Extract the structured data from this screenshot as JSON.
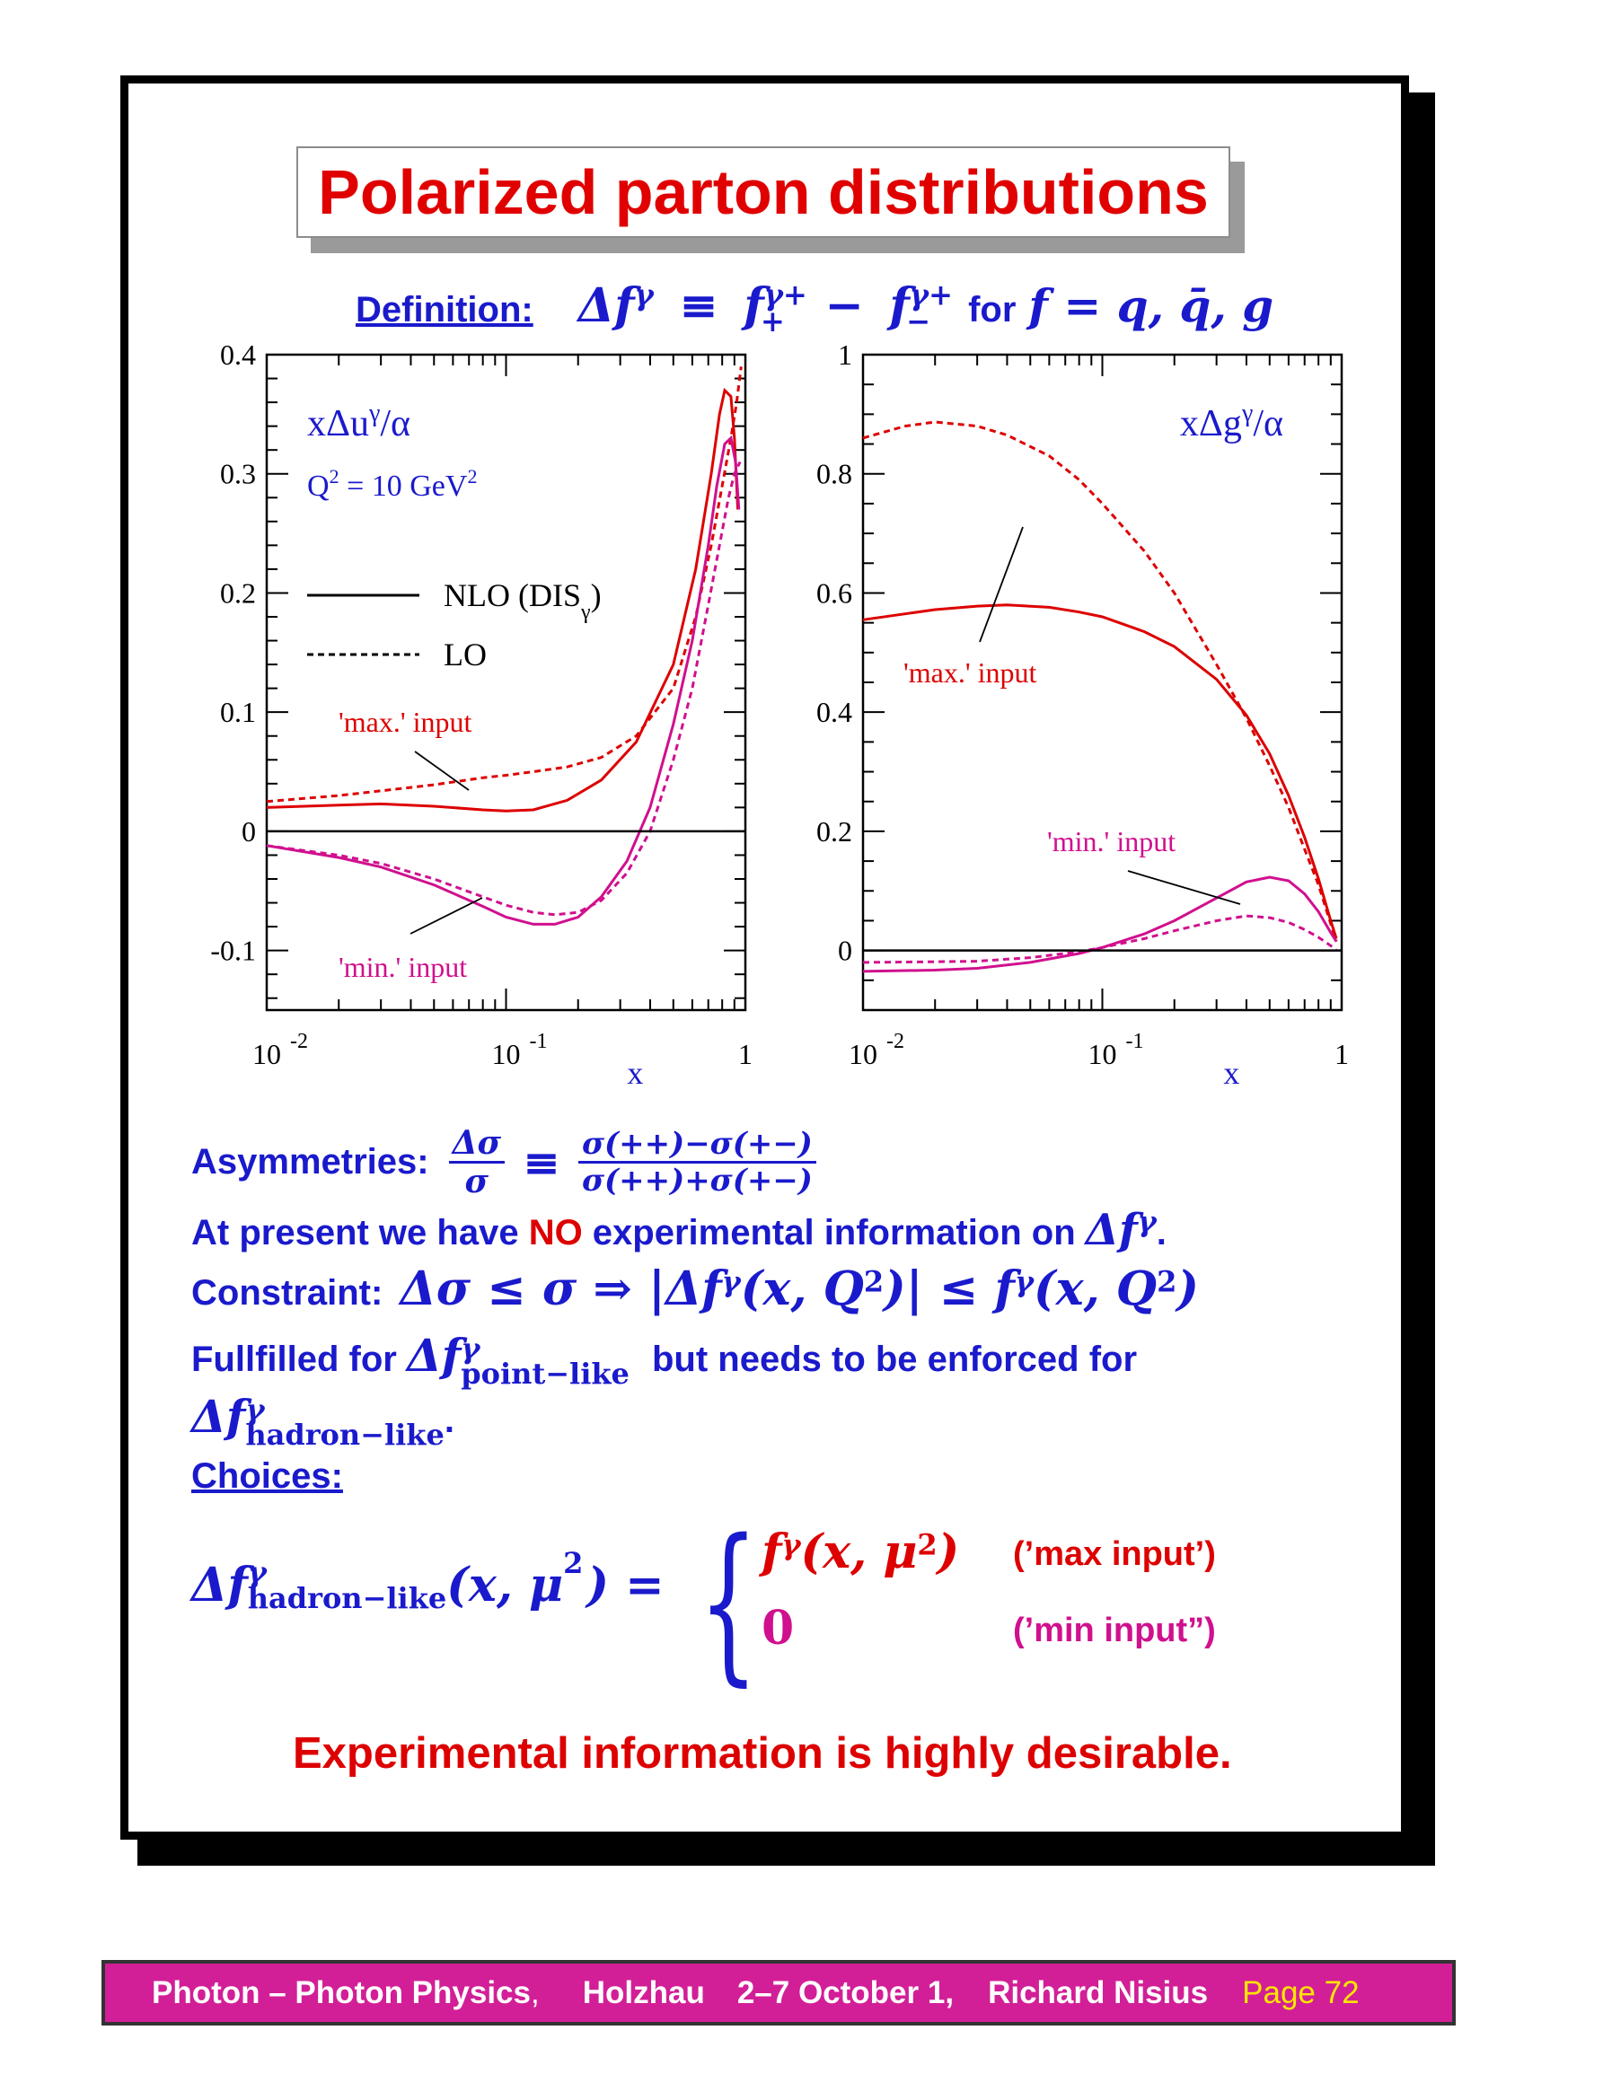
{
  "title": "Polarized parton distributions",
  "definition": {
    "label": "Definition:",
    "lhs": "Δf",
    "lhs_sup": "γ",
    "equiv": "≡",
    "term1": "f",
    "term1_sup": "γ+",
    "term1_sub": "+",
    "minus": "−",
    "term2": "f",
    "term2_sup": "γ+",
    "term2_sub": "−",
    "for_word": "for",
    "for_math": "f = q, q̄, g"
  },
  "colors": {
    "blue": "#1a1acc",
    "red": "#dd0000",
    "magenta": "#d0108e",
    "black": "#000000"
  },
  "chart_data": [
    {
      "type": "line",
      "panel_label": "xΔu",
      "panel_label_sup": "γ",
      "panel_label_tail": "/α",
      "scale_label": "Q",
      "scale_sup1": "2",
      "scale_mid": " = 10 GeV",
      "scale_sup2": "2",
      "xlabel": "x",
      "xscale": "log",
      "xlim": [
        0.01,
        1
      ],
      "ylim": [
        -0.15,
        0.4
      ],
      "yticks": [
        "0.4",
        "0.3",
        "0.2",
        "0.1",
        "0",
        "-0.1"
      ],
      "xticks": [
        {
          "base": "10",
          "exp": "-2"
        },
        {
          "base": "10",
          "exp": "-1"
        },
        {
          "base": "1",
          "exp": ""
        }
      ],
      "legend": [
        {
          "label": "NLO (DIS",
          "sub": "γ",
          "tail": ")",
          "style": "solid"
        },
        {
          "label": "LO",
          "style": "dashed"
        }
      ],
      "annotations": [
        {
          "text": "'max.' input",
          "color": "red"
        },
        {
          "text": "'min.' input",
          "color": "magenta"
        }
      ],
      "series": [
        {
          "style": "solid",
          "color": "red",
          "x": [
            0.01,
            0.02,
            0.03,
            0.05,
            0.08,
            0.1,
            0.13,
            0.18,
            0.25,
            0.35,
            0.5,
            0.62,
            0.72,
            0.78,
            0.82,
            0.87,
            0.9,
            0.93
          ],
          "y": [
            0.02,
            0.022,
            0.023,
            0.021,
            0.018,
            0.017,
            0.018,
            0.026,
            0.043,
            0.075,
            0.14,
            0.22,
            0.3,
            0.35,
            0.37,
            0.365,
            0.33,
            0.27
          ]
        },
        {
          "style": "dashed",
          "color": "red",
          "x": [
            0.01,
            0.02,
            0.03,
            0.05,
            0.08,
            0.1,
            0.13,
            0.18,
            0.25,
            0.35,
            0.5,
            0.62,
            0.72,
            0.8,
            0.87,
            0.92,
            0.96
          ],
          "y": [
            0.025,
            0.03,
            0.034,
            0.039,
            0.045,
            0.047,
            0.05,
            0.054,
            0.062,
            0.08,
            0.12,
            0.18,
            0.24,
            0.29,
            0.33,
            0.36,
            0.39
          ]
        },
        {
          "style": "solid",
          "color": "magenta",
          "x": [
            0.01,
            0.02,
            0.03,
            0.05,
            0.08,
            0.1,
            0.13,
            0.16,
            0.2,
            0.25,
            0.32,
            0.4,
            0.5,
            0.6,
            0.7,
            0.76,
            0.82,
            0.87,
            0.91,
            0.94
          ],
          "y": [
            -0.012,
            -0.022,
            -0.03,
            -0.045,
            -0.063,
            -0.072,
            -0.078,
            -0.078,
            -0.072,
            -0.055,
            -0.025,
            0.02,
            0.09,
            0.16,
            0.24,
            0.29,
            0.325,
            0.33,
            0.31,
            0.27
          ]
        },
        {
          "style": "dashed",
          "color": "magenta",
          "x": [
            0.01,
            0.02,
            0.03,
            0.05,
            0.08,
            0.1,
            0.13,
            0.16,
            0.2,
            0.25,
            0.32,
            0.4,
            0.5,
            0.6,
            0.7,
            0.78,
            0.85,
            0.9,
            0.95
          ],
          "y": [
            -0.012,
            -0.02,
            -0.027,
            -0.04,
            -0.055,
            -0.062,
            -0.068,
            -0.07,
            -0.068,
            -0.058,
            -0.035,
            0.0,
            0.06,
            0.12,
            0.19,
            0.24,
            0.28,
            0.3,
            0.31
          ]
        },
        {
          "style": "solid",
          "color": "black",
          "x": [
            0.01,
            1
          ],
          "y": [
            0,
            0
          ]
        }
      ]
    },
    {
      "type": "line",
      "panel_label": "xΔg",
      "panel_label_sup": "γ",
      "panel_label_tail": "/α",
      "xlabel": "x",
      "xscale": "log",
      "xlim": [
        0.01,
        1
      ],
      "ylim": [
        -0.1,
        1.0
      ],
      "yticks": [
        "1",
        "0.8",
        "0.6",
        "0.4",
        "0.2",
        "0"
      ],
      "xticks": [
        {
          "base": "10",
          "exp": "-2"
        },
        {
          "base": "10",
          "exp": "-1"
        },
        {
          "base": "1",
          "exp": ""
        }
      ],
      "annotations": [
        {
          "text": "'max.' input",
          "color": "red"
        },
        {
          "text": "'min.' input",
          "color": "magenta"
        }
      ],
      "series": [
        {
          "style": "solid",
          "color": "red",
          "x": [
            0.01,
            0.015,
            0.02,
            0.03,
            0.04,
            0.06,
            0.08,
            0.1,
            0.15,
            0.2,
            0.3,
            0.4,
            0.5,
            0.6,
            0.7,
            0.8,
            0.9,
            0.95
          ],
          "y": [
            0.555,
            0.565,
            0.572,
            0.578,
            0.58,
            0.576,
            0.568,
            0.56,
            0.535,
            0.51,
            0.455,
            0.395,
            0.33,
            0.26,
            0.19,
            0.12,
            0.05,
            0.02
          ]
        },
        {
          "style": "dashed",
          "color": "red",
          "x": [
            0.01,
            0.015,
            0.02,
            0.03,
            0.04,
            0.06,
            0.08,
            0.1,
            0.15,
            0.2,
            0.3,
            0.4,
            0.5,
            0.6,
            0.7,
            0.8,
            0.9,
            0.95
          ],
          "y": [
            0.86,
            0.88,
            0.887,
            0.88,
            0.865,
            0.83,
            0.79,
            0.75,
            0.67,
            0.6,
            0.48,
            0.39,
            0.31,
            0.24,
            0.17,
            0.11,
            0.045,
            0.015
          ]
        },
        {
          "style": "solid",
          "color": "magenta",
          "x": [
            0.01,
            0.02,
            0.03,
            0.05,
            0.08,
            0.1,
            0.15,
            0.2,
            0.3,
            0.4,
            0.5,
            0.6,
            0.7,
            0.8,
            0.9,
            0.95
          ],
          "y": [
            -0.035,
            -0.033,
            -0.03,
            -0.02,
            -0.005,
            0.005,
            0.028,
            0.05,
            0.088,
            0.115,
            0.123,
            0.117,
            0.095,
            0.065,
            0.03,
            0.015
          ]
        },
        {
          "style": "dashed",
          "color": "magenta",
          "x": [
            0.01,
            0.02,
            0.03,
            0.05,
            0.08,
            0.1,
            0.15,
            0.2,
            0.3,
            0.4,
            0.5,
            0.6,
            0.7,
            0.8,
            0.9,
            0.95
          ],
          "y": [
            -0.02,
            -0.019,
            -0.018,
            -0.012,
            -0.002,
            0.005,
            0.02,
            0.033,
            0.05,
            0.058,
            0.055,
            0.047,
            0.035,
            0.022,
            0.008,
            0.0
          ]
        },
        {
          "style": "solid",
          "color": "black",
          "x": [
            0.01,
            1
          ],
          "y": [
            0,
            0
          ]
        }
      ]
    }
  ],
  "asymmetries": {
    "label": "Asymmetries:",
    "frac1_num": "Δσ",
    "frac1_den": "σ",
    "equiv": "≡",
    "frac2_num": "σ(++)−σ(+−)",
    "frac2_den": "σ(++)+σ(+−)"
  },
  "present": {
    "before": "At present we have ",
    "no": "NO",
    "after": " experimental information on ",
    "math": "Δf",
    "math_sup": "γ",
    "dot": "."
  },
  "constraint": {
    "label": "Constraint:",
    "math": "Δσ ≤ σ ⇒ |Δf",
    "sup1": "γ",
    "mid": "(x, Q",
    "sq1": "2",
    "mid2": ")| ≤ f",
    "sup2": "γ",
    "mid3": "(x, Q",
    "sq2": "2",
    "end": ")"
  },
  "fullfilled": {
    "before": "Fullfilled for ",
    "math": "Δf",
    "sup": "γ",
    "sub": "point−like",
    "after": " but needs to be enforced for"
  },
  "hadron_line": {
    "math": "Δf",
    "sup": "γ",
    "sub": "hadron−like",
    "dot": "."
  },
  "choices": {
    "label": "Choices:",
    "lhs_math": "Δf",
    "lhs_sup": "γ",
    "lhs_sub": "hadron−like",
    "lhs_args": "(x, μ",
    "lhs_sq": "2",
    "lhs_end": ") =",
    "case1_math": "f",
    "case1_sup": "γ",
    "case1_args": "(x, μ",
    "case1_sq": "2",
    "case1_end": ")",
    "case1_label": "(’max input’)",
    "case2_math": "0",
    "case2_label": "(’min input”)"
  },
  "conclusion": "Experimental information is highly desirable.",
  "footer": {
    "part1": "Photon – Photon Physics",
    "comma": ",",
    "part2": "Holzhau",
    "part3": "2–7 October 1,",
    "part4": "Richard Nisius",
    "page": "Page 72"
  }
}
